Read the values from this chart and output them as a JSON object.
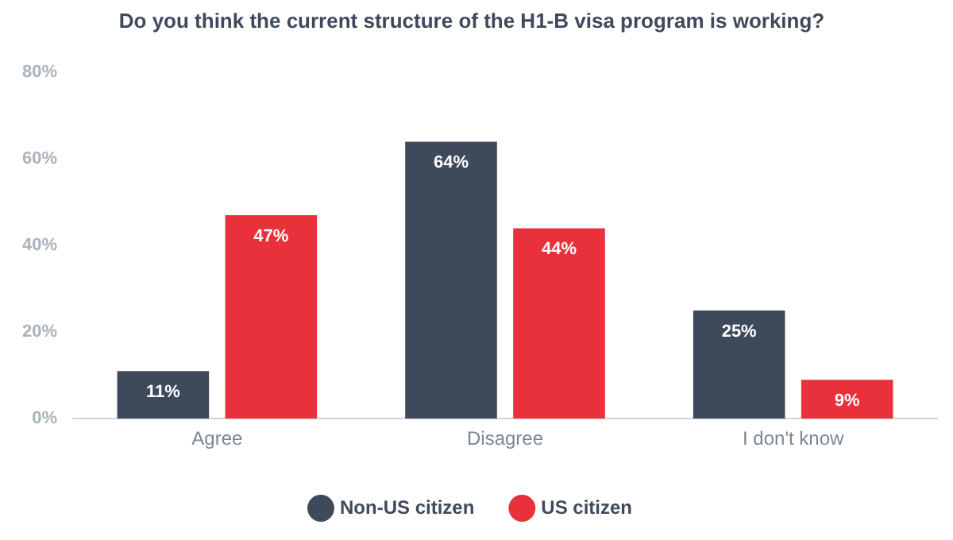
{
  "chart_data": {
    "type": "bar",
    "title": "Do you think the current structure of the H1-B visa program is working?",
    "categories": [
      "Agree",
      "Disagree",
      "I don't know"
    ],
    "series": [
      {
        "name": "Non-US citizen",
        "color": "#3e4a5c",
        "values": [
          11,
          64,
          25
        ],
        "value_labels": [
          "11%",
          "64%",
          "25%"
        ]
      },
      {
        "name": "US citizen",
        "color": "#e8313b",
        "values": [
          47,
          44,
          9
        ],
        "value_labels": [
          "47%",
          "44%",
          "9%"
        ]
      }
    ],
    "ylim": [
      0,
      80
    ],
    "yticks": [
      {
        "value": 0,
        "label": "0%"
      },
      {
        "value": 20,
        "label": "20%"
      },
      {
        "value": 40,
        "label": "40%"
      },
      {
        "value": 60,
        "label": "60%"
      },
      {
        "value": 80,
        "label": "80%"
      }
    ],
    "grid": false,
    "legend": "bottom"
  }
}
